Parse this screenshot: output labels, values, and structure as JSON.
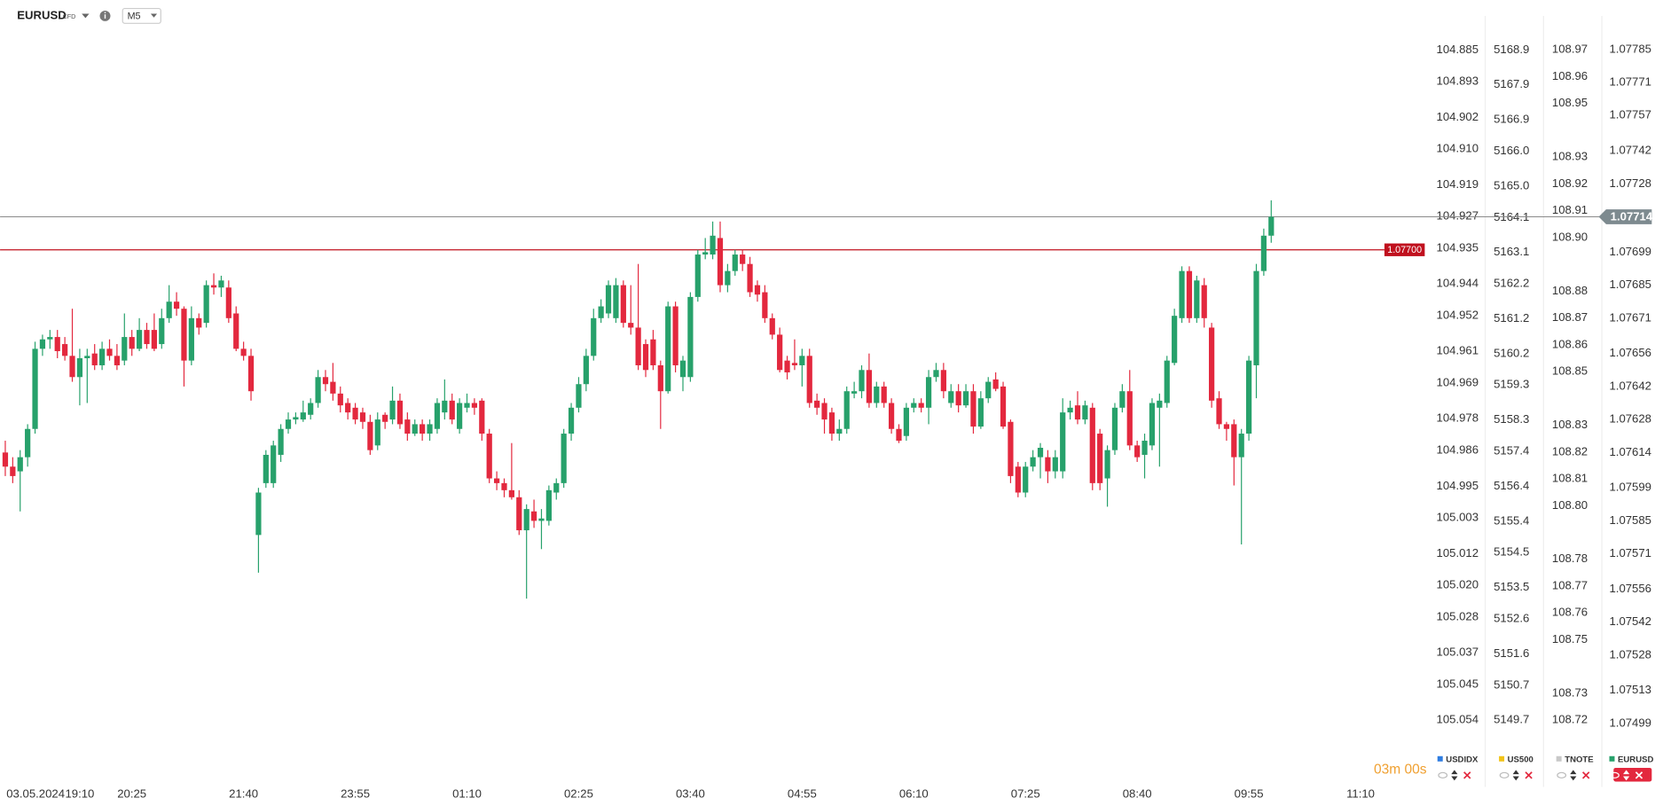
{
  "toolbar": {
    "symbol": "EURUSD",
    "symbol_type": "CFD",
    "timeframe": "M5"
  },
  "chart_data": {
    "type": "candlestick",
    "up_color": "#27a16b",
    "down_color": "#e3283e",
    "grid": false,
    "open": [
      1.07614,
      1.07608,
      1.07606,
      1.07612,
      1.07624,
      1.07658,
      1.07662,
      1.07663,
      1.0766,
      1.07655,
      1.07646,
      1.07654,
      1.07656,
      1.07651,
      1.07658,
      1.07655,
      1.07653,
      1.07663,
      1.07658,
      1.07666,
      1.07666,
      1.0766,
      1.07671,
      1.07678,
      1.07675,
      1.07653,
      1.07671,
      1.07669,
      1.07685,
      1.07684,
      1.07684,
      1.07673,
      1.07658,
      1.07655,
      1.07579,
      1.07601,
      1.07601,
      1.07613,
      1.07624,
      1.07628,
      1.07628,
      1.0763,
      1.07635,
      1.07646,
      1.07644,
      1.07639,
      1.07635,
      1.07633,
      1.07631,
      1.07627,
      1.07617,
      1.0763,
      1.07628,
      1.07636,
      1.07628,
      1.07622,
      1.07626,
      1.07622,
      1.07624,
      1.07631,
      1.07636,
      1.07624,
      1.07633,
      1.07635,
      1.07636,
      1.07622,
      1.07603,
      1.07601,
      1.07598,
      1.07595,
      1.07581,
      1.07589,
      1.07585,
      1.07585,
      1.07597,
      1.07601,
      1.07622,
      1.07633,
      1.07643,
      1.07655,
      1.07671,
      1.07673,
      1.07671,
      1.07685,
      1.07669,
      1.07667,
      1.0766,
      1.07662,
      1.07651,
      1.0764,
      1.07676,
      1.07646,
      1.07646,
      1.0768,
      1.07698,
      1.07698,
      1.07705,
      1.07685,
      1.07691,
      1.07698,
      1.07694,
      1.07685,
      1.07682,
      1.07671,
      1.07664,
      1.07653,
      1.07652,
      1.07651,
      1.07655,
      1.07636,
      1.07635,
      1.07631,
      1.07622,
      1.07624,
      1.07639,
      1.0764,
      1.07649,
      1.07635,
      1.07642,
      1.07635,
      1.07624,
      1.07621,
      1.07633,
      1.07635,
      1.07633,
      1.07646,
      1.07649,
      1.07635,
      1.0764,
      1.07634,
      1.0764,
      1.07625,
      1.07637,
      1.07645,
      1.07642,
      1.07627,
      1.07608,
      1.07597,
      1.07608,
      1.07612,
      1.07612,
      1.07606,
      1.07606,
      1.07631,
      1.07634,
      1.07628,
      1.07633,
      1.07622,
      1.07603,
      1.07615,
      1.07633,
      1.0764,
      1.07617,
      1.07613,
      1.07617,
      1.07633,
      1.07635,
      1.07652,
      1.07671,
      1.07691,
      1.07671,
      1.07685,
      1.07667,
      1.07637,
      1.07626,
      1.07626,
      1.07612,
      1.07622,
      1.07651,
      1.07691,
      1.07706
    ],
    "high": [
      1.07619,
      1.07612,
      1.07615,
      1.07626,
      1.07661,
      1.07664,
      1.07666,
      1.07666,
      1.07663,
      1.07675,
      1.07658,
      1.07658,
      1.0766,
      1.07661,
      1.07662,
      1.0766,
      1.07673,
      1.07666,
      1.07671,
      1.07669,
      1.07673,
      1.07675,
      1.07685,
      1.07682,
      1.07676,
      1.07676,
      1.07673,
      1.07687,
      1.0769,
      1.07689,
      1.07687,
      1.07676,
      1.07661,
      1.07658,
      1.07599,
      1.07615,
      1.07619,
      1.07626,
      1.07631,
      1.07631,
      1.07636,
      1.07637,
      1.07649,
      1.07649,
      1.07652,
      1.07642,
      1.07637,
      1.07635,
      1.07633,
      1.0763,
      1.07631,
      1.07631,
      1.07642,
      1.07639,
      1.07631,
      1.07628,
      1.07628,
      1.07628,
      1.07637,
      1.07645,
      1.07639,
      1.07637,
      1.07639,
      1.07637,
      1.07637,
      1.07624,
      1.07606,
      1.07603,
      1.07618,
      1.07598,
      1.07592,
      1.07594,
      1.0759,
      1.076,
      1.07603,
      1.07624,
      1.07635,
      1.07646,
      1.07658,
      1.07675,
      1.07679,
      1.07687,
      1.07688,
      1.07687,
      1.07685,
      1.07694,
      1.07662,
      1.07666,
      1.07653,
      1.07678,
      1.07678,
      1.07655,
      1.07682,
      1.077,
      1.07705,
      1.07712,
      1.07712,
      1.07694,
      1.077,
      1.077,
      1.07697,
      1.07687,
      1.07685,
      1.07673,
      1.07667,
      1.07655,
      1.07662,
      1.07658,
      1.07658,
      1.07639,
      1.07637,
      1.07633,
      1.07628,
      1.07642,
      1.07644,
      1.07651,
      1.07656,
      1.07644,
      1.07644,
      1.07637,
      1.07626,
      1.07635,
      1.07637,
      1.07637,
      1.07649,
      1.07652,
      1.07652,
      1.07643,
      1.07643,
      1.07643,
      1.07643,
      1.0764,
      1.07646,
      1.07648,
      1.07644,
      1.07628,
      1.0761,
      1.0761,
      1.07615,
      1.07618,
      1.07615,
      1.07615,
      1.07637,
      1.07636,
      1.0764,
      1.07636,
      1.07635,
      1.07624,
      1.07617,
      1.07635,
      1.07643,
      1.07649,
      1.07619,
      1.07622,
      1.07637,
      1.07639,
      1.07655,
      1.07675,
      1.07693,
      1.07693,
      1.07689,
      1.07688,
      1.07669,
      1.0764,
      1.07627,
      1.07628,
      1.07624,
      1.07655,
      1.07694,
      1.07709,
      1.07721
    ],
    "low": [
      1.07604,
      1.07601,
      1.07589,
      1.07608,
      1.07622,
      1.07655,
      1.07658,
      1.07654,
      1.07653,
      1.07644,
      1.07634,
      1.07635,
      1.07649,
      1.07649,
      1.07653,
      1.07649,
      1.07651,
      1.07655,
      1.07657,
      1.07658,
      1.07657,
      1.07658,
      1.07669,
      1.07672,
      1.07642,
      1.07651,
      1.07664,
      1.07667,
      1.07681,
      1.0768,
      1.07669,
      1.07657,
      1.07653,
      1.07636,
      1.07563,
      1.07599,
      1.07599,
      1.0761,
      1.07622,
      1.07626,
      1.07627,
      1.07628,
      1.07633,
      1.0764,
      1.07636,
      1.07631,
      1.07628,
      1.07626,
      1.07624,
      1.07613,
      1.07615,
      1.07624,
      1.07626,
      1.07624,
      1.07619,
      1.07621,
      1.07619,
      1.07619,
      1.07622,
      1.07628,
      1.07626,
      1.07622,
      1.07631,
      1.0763,
      1.07619,
      1.07601,
      1.07598,
      1.07595,
      1.07594,
      1.07579,
      1.07552,
      1.07582,
      1.07573,
      1.07583,
      1.07594,
      1.07599,
      1.07619,
      1.07631,
      1.0764,
      1.07653,
      1.07669,
      1.07671,
      1.07669,
      1.07667,
      1.07664,
      1.07649,
      1.07646,
      1.07649,
      1.07624,
      1.07639,
      1.07648,
      1.0764,
      1.07644,
      1.07678,
      1.07696,
      1.07696,
      1.07682,
      1.07682,
      1.07689,
      1.07691,
      1.0768,
      1.07678,
      1.07669,
      1.07662,
      1.07648,
      1.07645,
      1.07649,
      1.07642,
      1.07633,
      1.0763,
      1.07622,
      1.07619,
      1.07619,
      1.07622,
      1.07637,
      1.07637,
      1.07633,
      1.07633,
      1.07633,
      1.07622,
      1.07618,
      1.07619,
      1.07631,
      1.07631,
      1.07626,
      1.07644,
      1.07637,
      1.07633,
      1.07631,
      1.07633,
      1.07622,
      1.07624,
      1.07635,
      1.0764,
      1.07624,
      1.07601,
      1.07595,
      1.07595,
      1.07606,
      1.07603,
      1.07601,
      1.07603,
      1.07603,
      1.07628,
      1.07626,
      1.07626,
      1.07598,
      1.07598,
      1.07591,
      1.07613,
      1.07631,
      1.07615,
      1.0761,
      1.07603,
      1.07615,
      1.07608,
      1.07633,
      1.07651,
      1.07669,
      1.07669,
      1.07669,
      1.07667,
      1.07633,
      1.07624,
      1.07619,
      1.076,
      1.07575,
      1.07619,
      1.07637,
      1.07689,
      1.07703
    ],
    "close": [
      1.07608,
      1.07604,
      1.07612,
      1.07624,
      1.07658,
      1.07662,
      1.07663,
      1.07657,
      1.07655,
      1.07646,
      1.07654,
      1.07655,
      1.07651,
      1.07658,
      1.07655,
      1.07651,
      1.07663,
      1.07658,
      1.07666,
      1.0766,
      1.07658,
      1.07671,
      1.07678,
      1.07675,
      1.07653,
      1.07671,
      1.07667,
      1.07685,
      1.07684,
      1.07687,
      1.07671,
      1.07658,
      1.07655,
      1.0764,
      1.07597,
      1.07613,
      1.07617,
      1.07624,
      1.07628,
      1.07629,
      1.07631,
      1.07635,
      1.07646,
      1.07643,
      1.07639,
      1.07634,
      1.07631,
      1.07628,
      1.07627,
      1.07615,
      1.07628,
      1.07627,
      1.07636,
      1.07626,
      1.07622,
      1.07626,
      1.07622,
      1.07626,
      1.07635,
      1.07636,
      1.07628,
      1.07635,
      1.07635,
      1.07633,
      1.07622,
      1.07603,
      1.07601,
      1.07598,
      1.07595,
      1.07581,
      1.0759,
      1.07585,
      1.07586,
      1.07598,
      1.07601,
      1.07622,
      1.07633,
      1.07643,
      1.07655,
      1.07671,
      1.07676,
      1.07685,
      1.07685,
      1.07669,
      1.07667,
      1.07651,
      1.07649,
      1.07651,
      1.0764,
      1.07676,
      1.07651,
      1.07653,
      1.0768,
      1.07698,
      1.07699,
      1.07706,
      1.07685,
      1.07691,
      1.07698,
      1.07694,
      1.07682,
      1.07681,
      1.07671,
      1.07664,
      1.07649,
      1.07648,
      1.07651,
      1.07655,
      1.07635,
      1.07633,
      1.07628,
      1.07622,
      1.07624,
      1.0764,
      1.0764,
      1.07649,
      1.07635,
      1.07642,
      1.07635,
      1.07624,
      1.07619,
      1.07633,
      1.07635,
      1.07633,
      1.07646,
      1.07649,
      1.0764,
      1.0764,
      1.07634,
      1.0764,
      1.07625,
      1.07637,
      1.07644,
      1.07641,
      1.07625,
      1.07604,
      1.07597,
      1.07608,
      1.07612,
      1.07616,
      1.07606,
      1.07612,
      1.07631,
      1.07633,
      1.07628,
      1.07634,
      1.07601,
      1.07601,
      1.07615,
      1.07633,
      1.0764,
      1.07617,
      1.07612,
      1.07619,
      1.07635,
      1.07636,
      1.07653,
      1.07672,
      1.07691,
      1.07671,
      1.07687,
      1.07671,
      1.07636,
      1.07626,
      1.07624,
      1.07612,
      1.07622,
      1.07653,
      1.07691,
      1.07706,
      1.07714
    ],
    "xlim": [
      -0.7,
      190.9
    ],
    "date_label": "03.05.2024",
    "xticks": [
      {
        "value": 10,
        "label": "19:10"
      },
      {
        "value": 17,
        "label": "20:25"
      },
      {
        "value": 32,
        "label": "21:40"
      },
      {
        "value": 47,
        "label": "23:55"
      },
      {
        "value": 62,
        "label": "01:10"
      },
      {
        "value": 77,
        "label": "02:25"
      },
      {
        "value": 92,
        "label": "03:40"
      },
      {
        "value": 107,
        "label": "04:55"
      },
      {
        "value": 122,
        "label": "06:10"
      },
      {
        "value": 137,
        "label": "07:25"
      },
      {
        "value": 152,
        "label": "08:40"
      },
      {
        "value": 167,
        "label": "09:55"
      },
      {
        "value": 182,
        "label": "11:10"
      }
    ],
    "ylim": [
      1.07473,
      1.07806
    ],
    "yticks": [
      1.07785,
      1.07771,
      1.07757,
      1.07742,
      1.07728,
      1.07699,
      1.07685,
      1.07671,
      1.07656,
      1.07642,
      1.07628,
      1.07614,
      1.07599,
      1.07585,
      1.07571,
      1.07556,
      1.07542,
      1.07528,
      1.07513,
      1.07499
    ],
    "last_price": 1.07714,
    "last_price_color": "#7d8a8f",
    "alert_line": {
      "value": 1.077,
      "label": "1.07700"
    },
    "alert_color": "#c0101e",
    "timer": "03m 00s",
    "legend": [
      {
        "name": "USDIDX",
        "color": "#2f7de1"
      },
      {
        "name": "US500",
        "color": "#f2c318"
      },
      {
        "name": "TNOTE",
        "color": "#c8c8c8"
      },
      {
        "name": "EURUSD",
        "color": "#27a16b"
      }
    ],
    "other_axes": [
      {
        "ylim": [
          105.0703,
          104.8724
        ],
        "yticks": [
          104.885,
          104.893,
          104.902,
          {
            "value": 104.91,
            "label": "104.910"
          },
          104.919,
          104.927,
          104.935,
          104.944,
          104.952,
          104.961,
          104.969,
          104.978,
          104.986,
          104.995,
          105.003,
          105.012,
          {
            "value": 105.02,
            "label": "105.020"
          },
          105.028,
          105.037,
          105.045,
          105.054
        ]
      },
      {
        "ylim": [
          5147.85,
          5170.33
        ],
        "yticks": [
          5168.9,
          5167.9,
          5166.9,
          {
            "value": 5166,
            "label": "5166.0"
          },
          {
            "value": 5165,
            "label": "5165.0"
          },
          5164.1,
          5163.1,
          5162.2,
          5161.2,
          5160.2,
          5159.3,
          5158.3,
          5157.4,
          5156.4,
          5155.4,
          5154.5,
          5153.5,
          5152.6,
          5151.6,
          5150.7,
          5149.7
        ]
      },
      {
        "ylim": [
          108.6959,
          108.9886
        ],
        "yticks": [
          108.97,
          108.96,
          108.95,
          108.93,
          108.92,
          108.91,
          {
            "value": 108.9,
            "label": "108.90"
          },
          108.88,
          108.87,
          108.86,
          108.85,
          108.83,
          108.82,
          108.81,
          {
            "value": 108.8,
            "label": "108.80"
          },
          108.78,
          108.77,
          108.76,
          108.75,
          108.73,
          108.72
        ]
      }
    ]
  }
}
